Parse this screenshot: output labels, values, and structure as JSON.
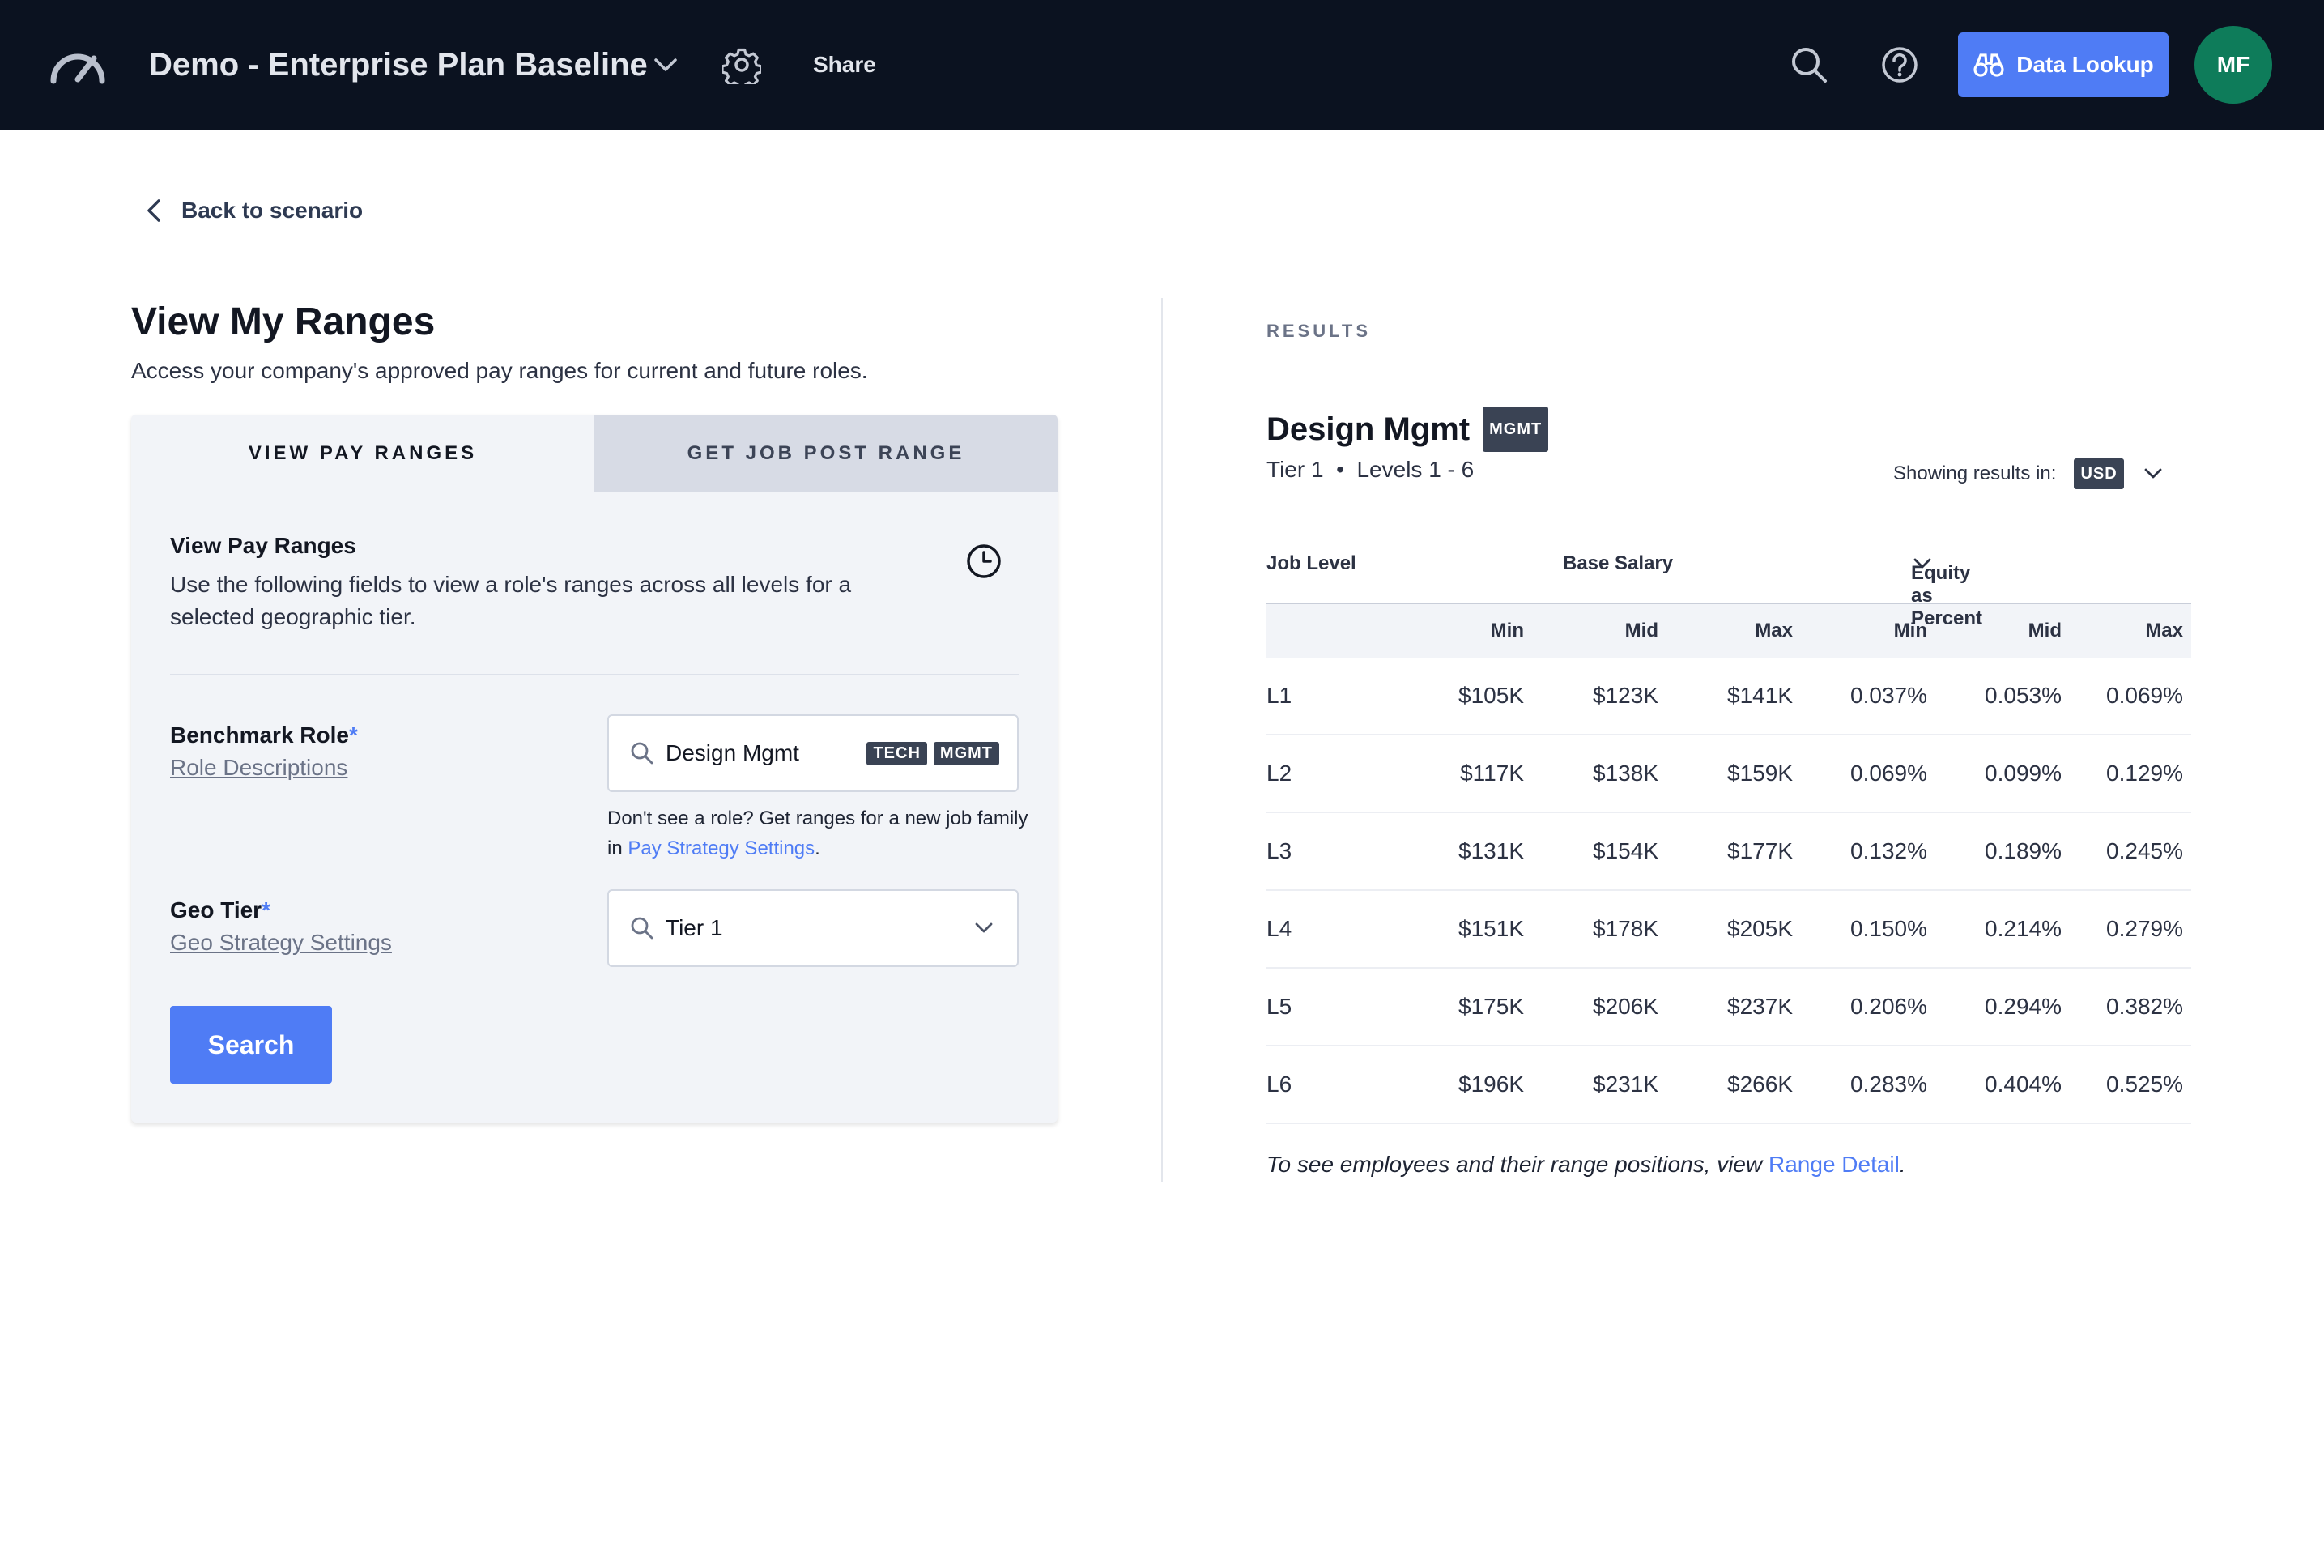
{
  "header": {
    "scenario_title": "Demo - Enterprise Plan Baseline",
    "share_label": "Share",
    "data_lookup_label": "Data Lookup",
    "avatar_initials": "MF",
    "icons": [
      "speedometer-logo-icon",
      "chevron-down-icon",
      "gear-icon",
      "search-icon",
      "help-icon",
      "binoculars-icon"
    ]
  },
  "back_link": "Back to scenario",
  "page": {
    "title": "View My Ranges",
    "subtitle": "Access your company's approved pay ranges for current and future roles."
  },
  "tabs": [
    {
      "label": "VIEW PAY RANGES",
      "active": true
    },
    {
      "label": "GET JOB POST RANGE",
      "active": false
    }
  ],
  "form": {
    "section_title": "View Pay Ranges",
    "section_desc": "Use the following fields to view a role's ranges across all levels for a selected geographic tier.",
    "benchmark_label": "Benchmark Role",
    "required_mark": "*",
    "role_descriptions_link": "Role Descriptions",
    "role_value": "Design Mgmt",
    "role_badges": [
      "TECH",
      "MGMT"
    ],
    "hint_prefix": "Don't see a role? Get ranges for a new job family in ",
    "hint_link": "Pay Strategy Settings",
    "hint_suffix": ".",
    "geo_label": "Geo Tier",
    "geo_settings_link": "Geo Strategy Settings",
    "geo_value": "Tier 1",
    "search_button": "Search"
  },
  "results": {
    "section_label": "RESULTS",
    "role_title": "Design Mgmt",
    "role_badge": "MGMT",
    "tier": "Tier 1",
    "bullet": "•",
    "levels": "Levels 1 - 6",
    "showing_label": "Showing results in:",
    "currency": "USD",
    "col_job_level": "Job Level",
    "col_base_salary": "Base Salary",
    "col_equity": "Equity as Percent",
    "sub_headers": [
      "Min",
      "Mid",
      "Max",
      "Min",
      "Mid",
      "Max"
    ],
    "rows": [
      {
        "level": "L1",
        "cells": [
          "$105K",
          "$123K",
          "$141K",
          "0.037%",
          "0.053%",
          "0.069%"
        ]
      },
      {
        "level": "L2",
        "cells": [
          "$117K",
          "$138K",
          "$159K",
          "0.069%",
          "0.099%",
          "0.129%"
        ]
      },
      {
        "level": "L3",
        "cells": [
          "$131K",
          "$154K",
          "$177K",
          "0.132%",
          "0.189%",
          "0.245%"
        ]
      },
      {
        "level": "L4",
        "cells": [
          "$151K",
          "$178K",
          "$205K",
          "0.150%",
          "0.214%",
          "0.279%"
        ]
      },
      {
        "level": "L5",
        "cells": [
          "$175K",
          "$206K",
          "$237K",
          "0.206%",
          "0.294%",
          "0.382%"
        ]
      },
      {
        "level": "L6",
        "cells": [
          "$196K",
          "$231K",
          "$266K",
          "0.283%",
          "0.404%",
          "0.525%"
        ]
      }
    ],
    "footnote_prefix": "To see employees and their range positions, view ",
    "footnote_link": "Range Detail",
    "footnote_suffix": "."
  },
  "colors": {
    "topbar": "#0b1220",
    "accent": "#4f7cf5",
    "avatar": "#0e7c5a"
  }
}
